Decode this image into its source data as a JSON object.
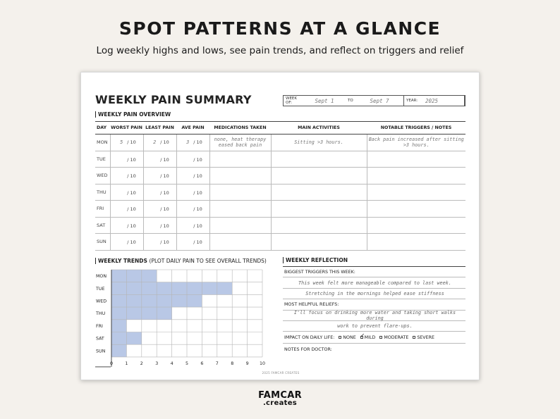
{
  "hero": {
    "title": "SPOT PATTERNS AT A GLANCE",
    "subtitle": "Log weekly highs and lows, see pain trends, and reflect on triggers and relief"
  },
  "sheet": {
    "title": "WEEKLY PAIN SUMMARY",
    "week": {
      "week_of_label": "WEEK OF:",
      "week_of": "Sept 1",
      "to_label": "TO",
      "to": "Sept 7",
      "year_label": "YEAR:",
      "year": "2025"
    },
    "overview_label": "WEEKLY PAIN OVERVIEW",
    "columns": [
      "DAY",
      "WORST PAIN",
      "LEAST PAIN",
      "AVE PAIN",
      "MEDICATIONS TAKEN",
      "MAIN ACTIVITIES",
      "NOTABLE TRIGGERS / NOTES"
    ],
    "scale_suffix": "/ 10",
    "rows": [
      {
        "day": "MON",
        "worst": "5",
        "least": "2",
        "ave": "3",
        "meds": "none, heat therapy eased back pain",
        "activities": "Sitting >3 hours.",
        "notes": "Back pain increased after sitting >3 hours."
      },
      {
        "day": "TUE",
        "worst": "",
        "least": "",
        "ave": "",
        "meds": "",
        "activities": "",
        "notes": ""
      },
      {
        "day": "WED",
        "worst": "",
        "least": "",
        "ave": "",
        "meds": "",
        "activities": "",
        "notes": ""
      },
      {
        "day": "THU",
        "worst": "",
        "least": "",
        "ave": "",
        "meds": "",
        "activities": "",
        "notes": ""
      },
      {
        "day": "FRI",
        "worst": "",
        "least": "",
        "ave": "",
        "meds": "",
        "activities": "",
        "notes": ""
      },
      {
        "day": "SAT",
        "worst": "",
        "least": "",
        "ave": "",
        "meds": "",
        "activities": "",
        "notes": ""
      },
      {
        "day": "SUN",
        "worst": "",
        "least": "",
        "ave": "",
        "meds": "",
        "activities": "",
        "notes": ""
      }
    ],
    "trends_label": "WEEKLY TRENDS",
    "trends_note": "(PLOT DAILY PAIN TO SEE OVERALL TRENDS)",
    "reflection": {
      "label": "WEEKLY REFLECTION",
      "triggers_label": "BIGGEST TRIGGERS THIS WEEK:",
      "triggers_lines": [
        "This week felt more manageable compared to last week.",
        "Stretching in the mornings helped ease stiffness"
      ],
      "reliefs_label": "MOST HELPFUL RELIEFS:",
      "reliefs_lines": [
        "I'll focus on drinking more water and taking short walks during",
        "work to prevent flare-ups."
      ],
      "impact_label": "IMPACT ON DAILY LIFE:",
      "impact_options": [
        "NONE",
        "MILD",
        "MODERATE",
        "SEVERE"
      ],
      "impact_selected": "MILD",
      "doctor_label": "NOTES FOR DOCTOR:"
    },
    "footer": "2025 FAMCAR CREATES"
  },
  "chart_data": {
    "type": "bar",
    "orientation": "horizontal",
    "categories": [
      "MON",
      "TUE",
      "WED",
      "THU",
      "FRI",
      "SAT",
      "SUN"
    ],
    "values": [
      3,
      8,
      6,
      4,
      1,
      2,
      1
    ],
    "xticks": [
      0,
      1,
      2,
      3,
      4,
      5,
      6,
      7,
      8,
      9,
      10
    ],
    "xlim": [
      0,
      10
    ],
    "grid": true,
    "fill_color": "#b9c8e6"
  },
  "brand": {
    "line1": "FAMCAR",
    "line2": ".creates"
  }
}
